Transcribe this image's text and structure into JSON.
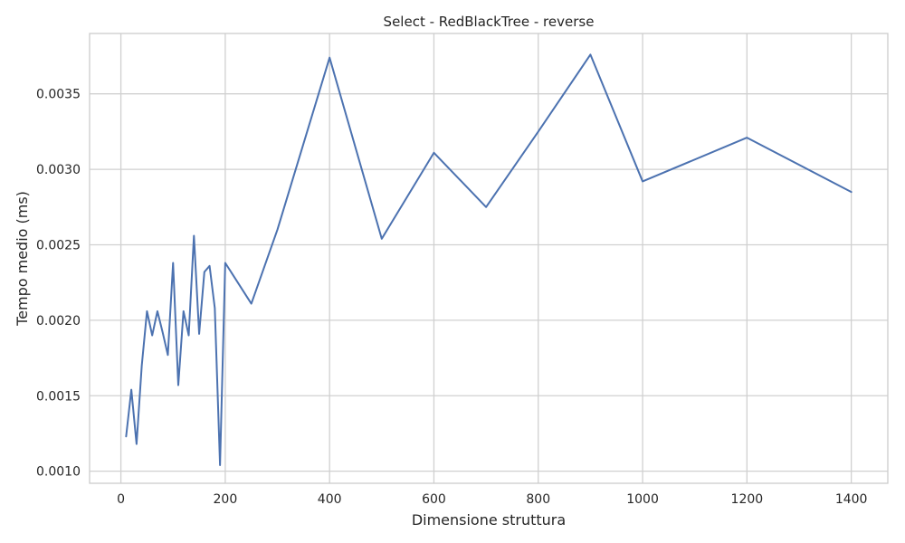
{
  "chart_data": {
    "type": "line",
    "title": "Select - RedBlackTree - reverse",
    "xlabel": "Dimensione struttura",
    "ylabel": "Tempo medio (ms)",
    "xlim": [
      -60,
      1470
    ],
    "ylim": [
      0.00092,
      0.0039
    ],
    "xticks": [
      0,
      200,
      400,
      600,
      800,
      1000,
      1200,
      1400
    ],
    "xtick_labels": [
      "0",
      "200",
      "400",
      "600",
      "800",
      "1000",
      "1200",
      "1400"
    ],
    "yticks": [
      0.001,
      0.0015,
      0.002,
      0.0025,
      0.003,
      0.0035
    ],
    "ytick_labels": [
      "0.0010",
      "0.0015",
      "0.0020",
      "0.0025",
      "0.0030",
      "0.0035"
    ],
    "grid": true,
    "series": [
      {
        "color": "#4c72b0",
        "x": [
          10,
          20,
          30,
          40,
          50,
          60,
          70,
          80,
          90,
          100,
          110,
          120,
          130,
          140,
          150,
          160,
          170,
          180,
          190,
          200,
          250,
          300,
          400,
          500,
          600,
          700,
          800,
          900,
          1000,
          1200,
          1400
        ],
        "y": [
          0.00123,
          0.00154,
          0.00118,
          0.0017,
          0.00206,
          0.0019,
          0.00206,
          0.00192,
          0.00177,
          0.00238,
          0.00157,
          0.00206,
          0.0019,
          0.00256,
          0.00191,
          0.00232,
          0.00236,
          0.00208,
          0.00104,
          0.00238,
          0.00211,
          0.0026,
          0.00374,
          0.00254,
          0.00311,
          0.00275,
          0.00325,
          0.00376,
          0.00292,
          0.00321,
          0.00285
        ]
      }
    ]
  }
}
